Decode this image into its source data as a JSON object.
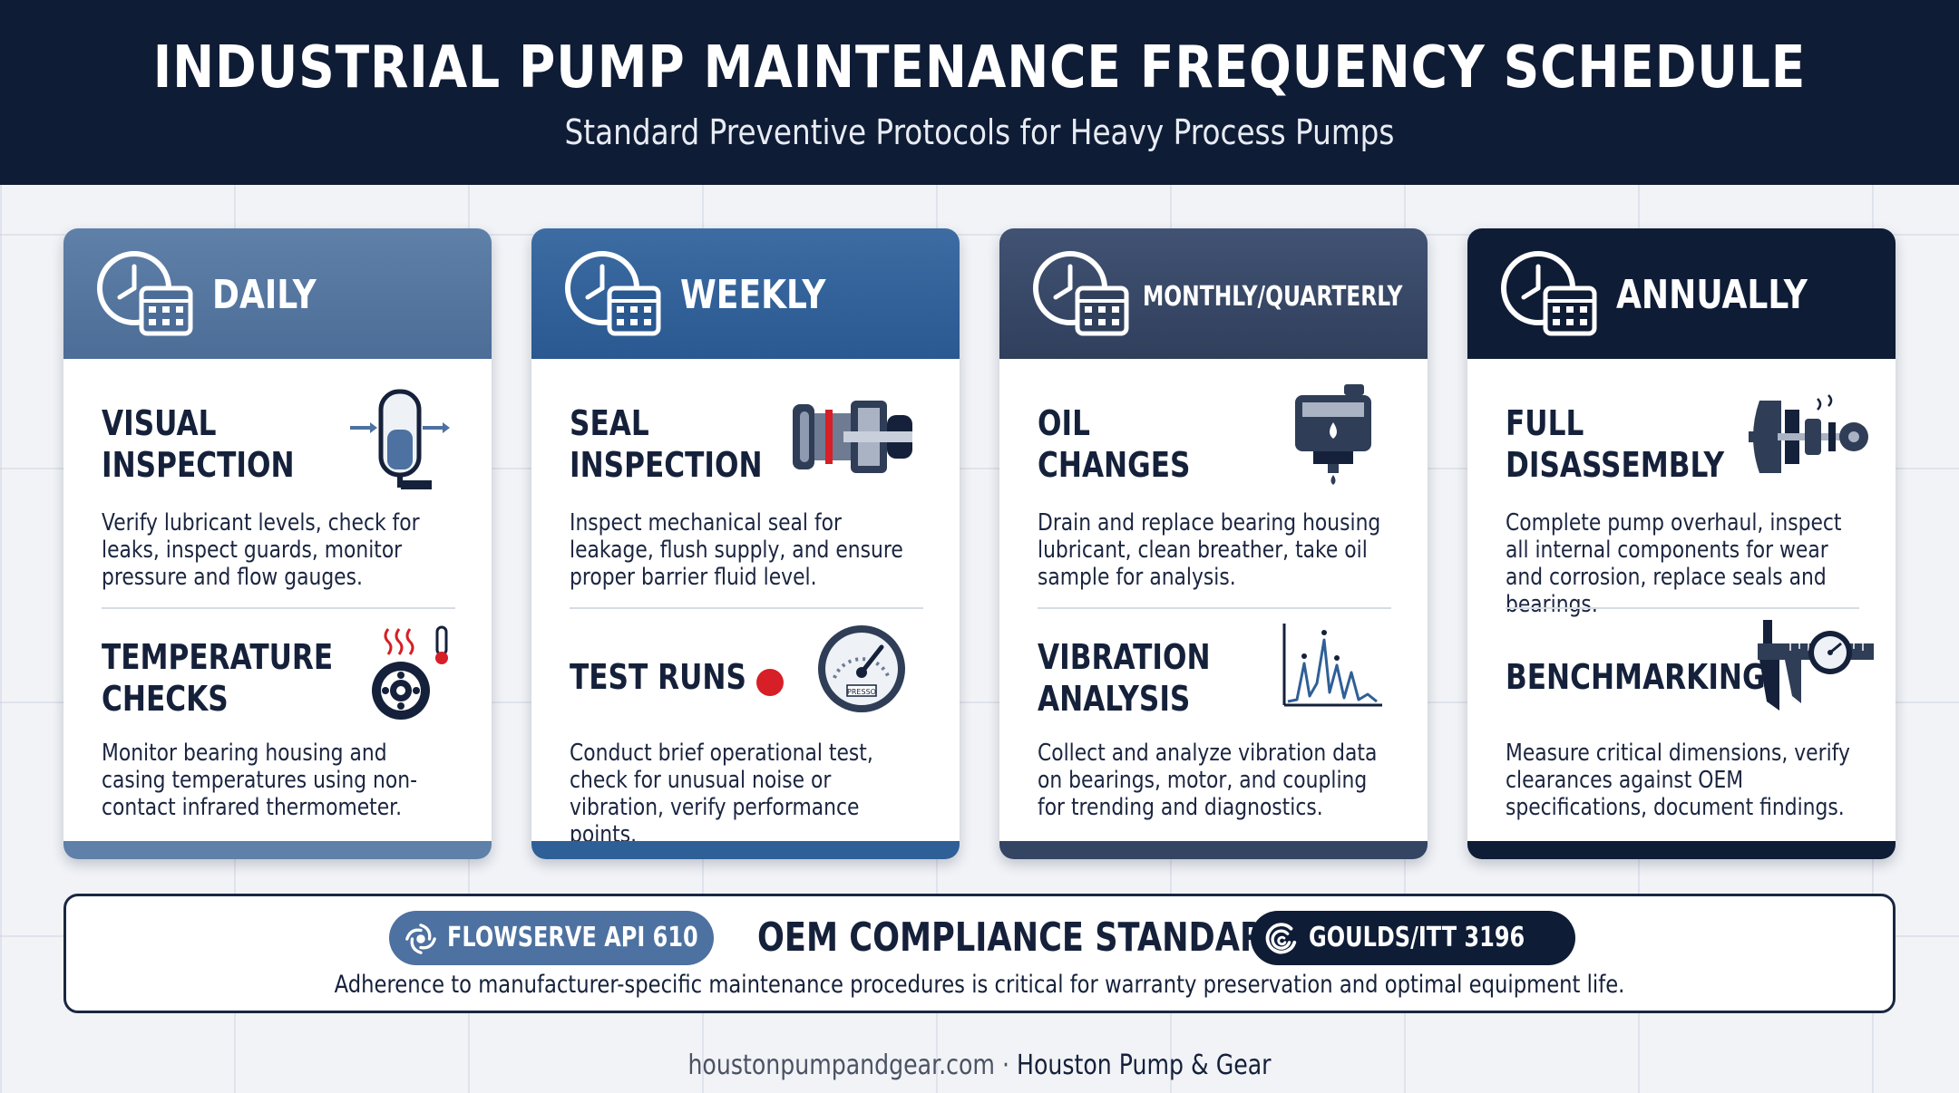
{
  "header": {
    "title": "INDUSTRIAL PUMP MAINTENANCE FREQUENCY SCHEDULE",
    "subtitle": "Standard Preventive Protocols for Heavy Process Pumps"
  },
  "colors": {
    "daily": "#55769f",
    "weekly": "#2f5f97",
    "monthly": "#344563",
    "annually": "#0f1c36",
    "navy": "#0f1c36",
    "accent_red": "#d61f26"
  },
  "cards": [
    {
      "label": "DAILY",
      "tasks": [
        {
          "title": "VISUAL\nINSPECTION",
          "desc": "Verify lubricant levels, check for leaks, inspect guards, monitor pressure and flow gauges.",
          "icon": "sight-glass-icon"
        },
        {
          "title": "TEMPERATURE\nCHECKS",
          "desc": "Monitor bearing housing and casing temperatures using non-contact infrared thermometer.",
          "icon": "hot-bearing-icon"
        }
      ]
    },
    {
      "label": "WEEKLY",
      "tasks": [
        {
          "title": "SEAL\nINSPECTION",
          "desc": "Inspect mechanical seal for leakage, flush supply, and ensure proper barrier fluid level.",
          "icon": "mechanical-seal-icon"
        },
        {
          "title": "TEST RUNS",
          "desc": "Conduct brief operational test, check for unusual noise or vibration, verify performance points.",
          "icon": "pressure-gauge-icon",
          "gauge_label": "PRESSO"
        }
      ]
    },
    {
      "label": "MONTHLY/QUARTERLY",
      "tasks": [
        {
          "title": "OIL\nCHANGES",
          "desc": "Drain and replace bearing housing lubricant, clean breather, take oil sample for analysis.",
          "icon": "oil-reservoir-icon"
        },
        {
          "title": "VIBRATION\nANALYSIS",
          "desc": "Collect and analyze vibration data on bearings, motor, and coupling for trending and diagnostics.",
          "icon": "vibration-spectrum-icon"
        }
      ]
    },
    {
      "label": "ANNUALLY",
      "tasks": [
        {
          "title": "FULL\nDISASSEMBLY",
          "desc": "Complete pump overhaul, inspect all internal components for wear and corrosion, replace seals and bearings.",
          "icon": "exploded-pump-icon"
        },
        {
          "title": "BENCHMARKING",
          "desc": "Measure critical dimensions, verify clearances against OEM specifications, document findings.",
          "icon": "caliper-gauge-icon"
        }
      ]
    }
  ],
  "footer": {
    "pill_left": "FLOWSERVE API 610",
    "pill_right": "GOULDS/ITT 3196",
    "title": "OEM COMPLIANCE STANDARDS",
    "desc": "Adherence to manufacturer-specific maintenance procedures is critical for warranty preservation and optimal equipment life.",
    "site": "houstonpumpandgear.com",
    "separator": " · ",
    "brand": "Houston Pump & Gear"
  }
}
